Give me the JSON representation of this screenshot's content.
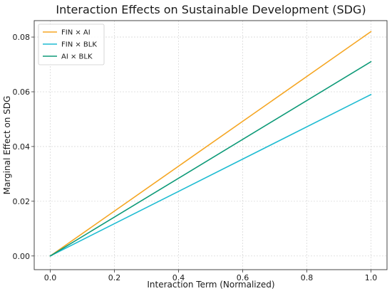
{
  "chart_data": {
    "type": "line",
    "title": "Interaction Effects on Sustainable Development (SDG)",
    "xlabel": "Interaction Term (Normalized)",
    "ylabel": "Marginal Effect on SDG",
    "xlim": [
      -0.05,
      1.05
    ],
    "ylim": [
      -0.005,
      0.086
    ],
    "xticks": [
      0.0,
      0.2,
      0.4,
      0.6,
      0.8,
      1.0
    ],
    "xtick_labels": [
      "0.0",
      "0.2",
      "0.4",
      "0.6",
      "0.8",
      "1.0"
    ],
    "yticks": [
      0.0,
      0.02,
      0.04,
      0.06,
      0.08
    ],
    "ytick_labels": [
      "0.00",
      "0.02",
      "0.04",
      "0.06",
      "0.08"
    ],
    "grid": true,
    "legend_position": "top-left",
    "series": [
      {
        "name": "FIN × AI",
        "color": "#f5a623",
        "x": [
          0.0,
          1.0
        ],
        "y": [
          0.0,
          0.082
        ]
      },
      {
        "name": "FIN × BLK",
        "color": "#1fbcd2",
        "x": [
          0.0,
          1.0
        ],
        "y": [
          0.0,
          0.059
        ]
      },
      {
        "name": "AI × BLK",
        "color": "#0e9a78",
        "x": [
          0.0,
          1.0
        ],
        "y": [
          0.0,
          0.071
        ]
      }
    ]
  }
}
